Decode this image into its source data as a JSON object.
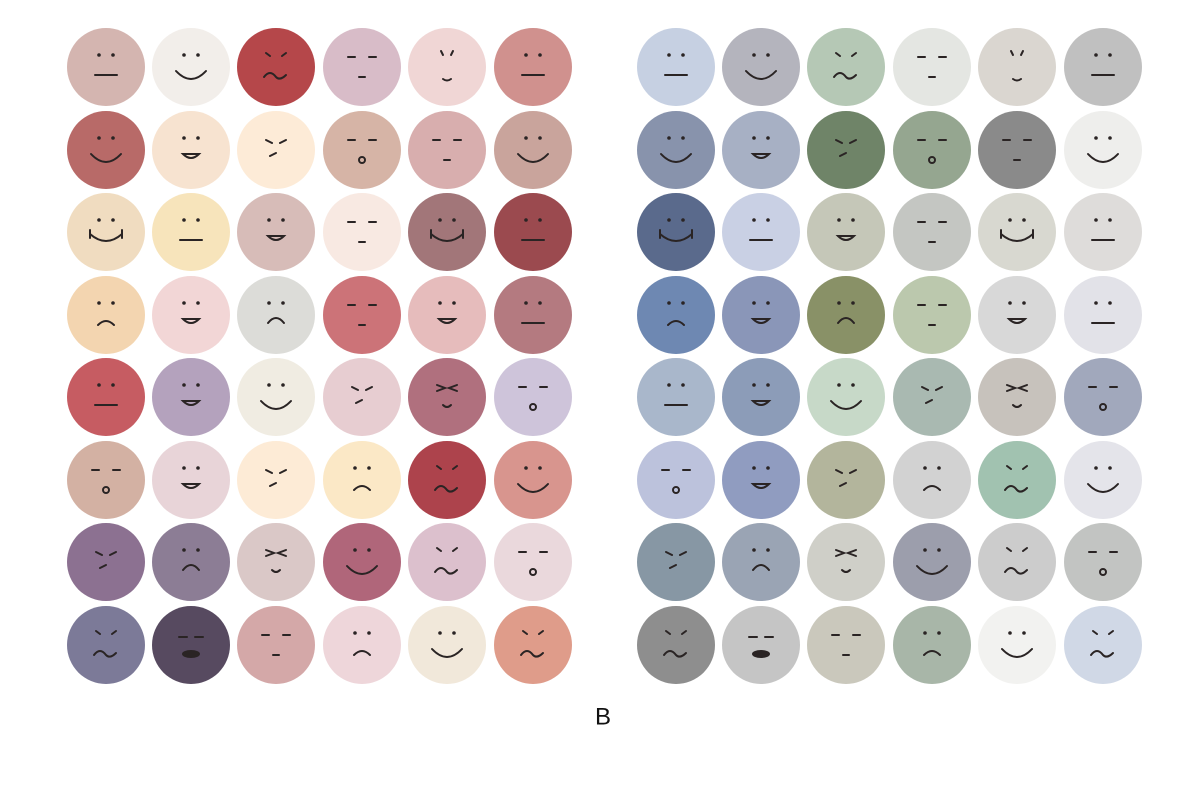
{
  "figure": {
    "label": "B"
  }
}
